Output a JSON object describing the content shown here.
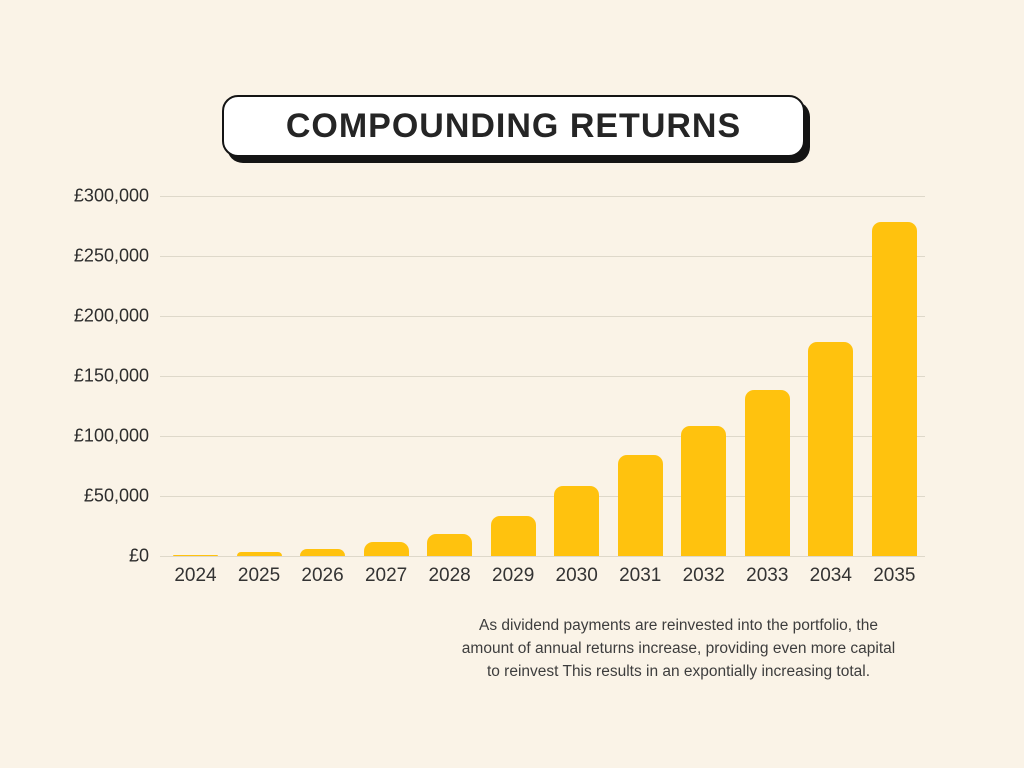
{
  "page": {
    "background": "#FAF3E7"
  },
  "title": "COMPOUNDING RETURNS",
  "caption_lines": [
    "As dividend payments are reinvested into the portfolio, the",
    "amount of annual returns increase, providing even more capital",
    "to reinvest This results in an expontially increasing total."
  ],
  "chart_data": {
    "type": "bar",
    "title": "COMPOUNDING RETURNS",
    "categories": [
      "2024",
      "2025",
      "2026",
      "2027",
      "2028",
      "2029",
      "2030",
      "2031",
      "2032",
      "2033",
      "2034",
      "2035"
    ],
    "values": [
      1000,
      3000,
      6000,
      12000,
      18000,
      33000,
      58000,
      84000,
      108000,
      138000,
      178000,
      278000
    ],
    "xlabel": "",
    "ylabel": "",
    "ylim": [
      0,
      300000
    ],
    "ytick_step": 50000,
    "ytick_labels": [
      "£0",
      "£50,000",
      "£100,000",
      "£150,000",
      "£200,000",
      "£250,000",
      "£300,000"
    ],
    "bar_color": "#FFC20E",
    "gridline_color": "#ded8ca",
    "grid": true,
    "legend": false
  }
}
